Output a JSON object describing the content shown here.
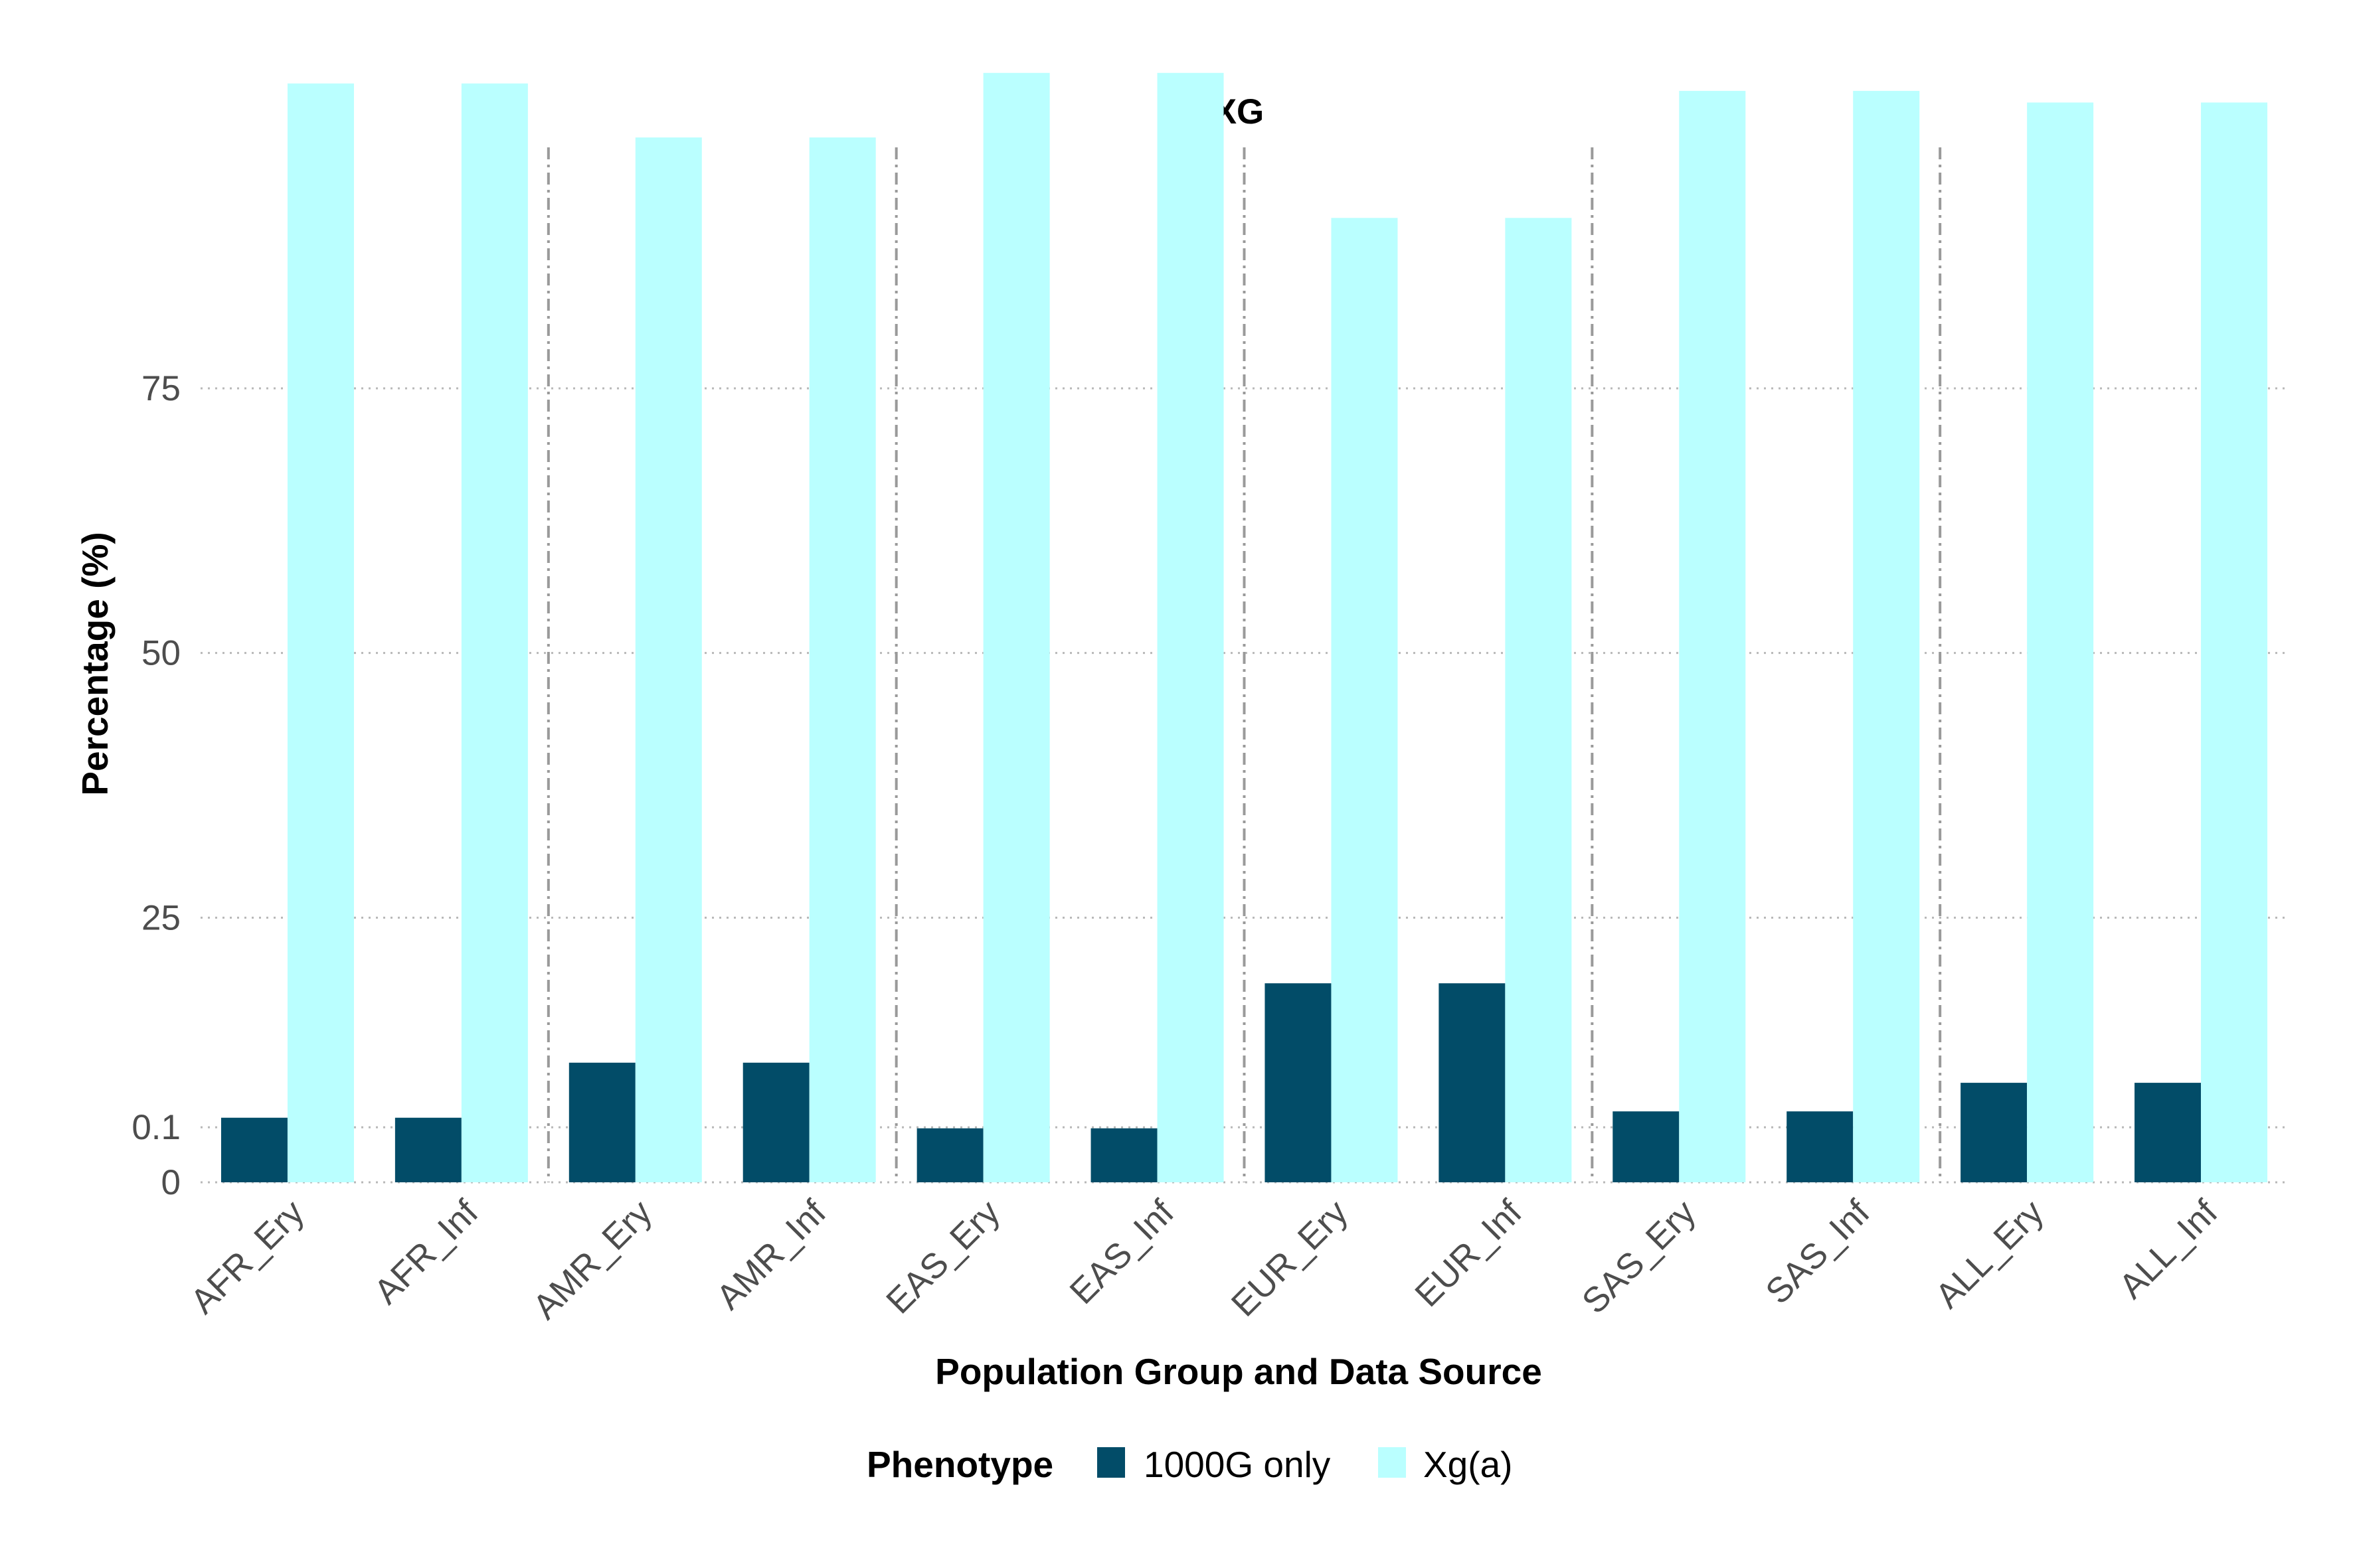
{
  "chart_data": {
    "type": "bar",
    "title": "XG",
    "xlabel": "Population Group and Data Source",
    "ylabel": "Percentage (%)",
    "categories": [
      "AFR_Ery",
      "AFR_Inf",
      "AMR_Ery",
      "AMR_Inf",
      "EAS_Ery",
      "EAS_Inf",
      "EUR_Ery",
      "EUR_Inf",
      "SAS_Ery",
      "SAS_Inf",
      "ALL_Ery",
      "ALL_Inf"
    ],
    "series": [
      {
        "name": "1000G only",
        "color": "#024c68",
        "values": [
          6.1,
          6.1,
          11.3,
          11.3,
          5.1,
          5.1,
          18.8,
          18.8,
          6.7,
          6.7,
          9.4,
          9.4
        ]
      },
      {
        "name": "Xg(a)",
        "color": "#baffff",
        "values": [
          103.8,
          103.8,
          98.7,
          98.7,
          104.8,
          104.8,
          91.1,
          91.1,
          103.1,
          103.1,
          102.0,
          102.0
        ]
      }
    ],
    "ylim": [
      0,
      105
    ],
    "yticks": [
      0,
      0.1,
      25,
      50,
      75
    ],
    "ytick_labels": [
      "0",
      "0.1",
      "25",
      "50",
      "75"
    ],
    "ytick_positions": [
      0,
      5.2,
      25,
      50,
      75
    ],
    "grid": true,
    "group_separators": true,
    "legend": {
      "title": "Phenotype",
      "placement": "bottom"
    }
  }
}
